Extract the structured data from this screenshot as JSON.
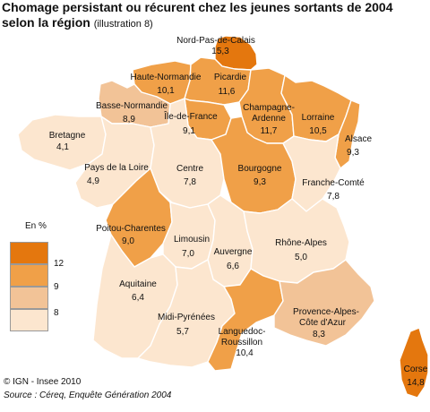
{
  "title": {
    "main": "Chomage persistant ou récurent chez les jeunes sortants de 2004 selon la région",
    "subtitle": "(illustration 8)"
  },
  "colors": {
    "class1": "#fce6cf",
    "class2": "#f2c397",
    "class3": "#f0a048",
    "class4": "#e4770e",
    "border": "#ffffff"
  },
  "legend": {
    "title": "En %",
    "thresholds": [
      "12",
      "9",
      "8"
    ]
  },
  "regions": [
    {
      "name": "Nord-Pas-de-Calais",
      "value": "15,3",
      "class": "class4"
    },
    {
      "name": "Haute-Normandie",
      "value": "10,1",
      "class": "class3"
    },
    {
      "name": "Picardie",
      "value": "11,6",
      "class": "class3"
    },
    {
      "name": "Basse-Normandie",
      "value": "8,9",
      "class": "class2"
    },
    {
      "name": "Champagne-Ardenne",
      "value": "11,7",
      "class": "class3"
    },
    {
      "name": "Lorraine",
      "value": "10,5",
      "class": "class3"
    },
    {
      "name": "Île-de-France",
      "value": "9,1",
      "class": "class3"
    },
    {
      "name": "Alsace",
      "value": "9,3",
      "class": "class3"
    },
    {
      "name": "Bretagne",
      "value": "4,1",
      "class": "class1"
    },
    {
      "name": "Pays de la Loire",
      "value": "4,9",
      "class": "class1"
    },
    {
      "name": "Centre",
      "value": "7,8",
      "class": "class1"
    },
    {
      "name": "Bourgogne",
      "value": "9,3",
      "class": "class3"
    },
    {
      "name": "Franche-Comté",
      "value": "7,8",
      "class": "class1"
    },
    {
      "name": "Poitou-Charentes",
      "value": "9,0",
      "class": "class3"
    },
    {
      "name": "Limousin",
      "value": "7,0",
      "class": "class1"
    },
    {
      "name": "Auvergne",
      "value": "6,6",
      "class": "class1"
    },
    {
      "name": "Rhône-Alpes",
      "value": "5,0",
      "class": "class1"
    },
    {
      "name": "Aquitaine",
      "value": "6,4",
      "class": "class1"
    },
    {
      "name": "Midi-Pyrénées",
      "value": "5,7",
      "class": "class1"
    },
    {
      "name": "Languedoc-Roussillon",
      "value": "10,4",
      "class": "class3"
    },
    {
      "name": "Provence-Alpes-Côte d'Azur",
      "value": "8,3",
      "class": "class2"
    },
    {
      "name": "Corse",
      "value": "14,8",
      "class": "class4"
    }
  ],
  "credits": {
    "copyright": "© IGN - Insee 2010",
    "source": "Source : Céreq, Enquête Génération 2004"
  }
}
